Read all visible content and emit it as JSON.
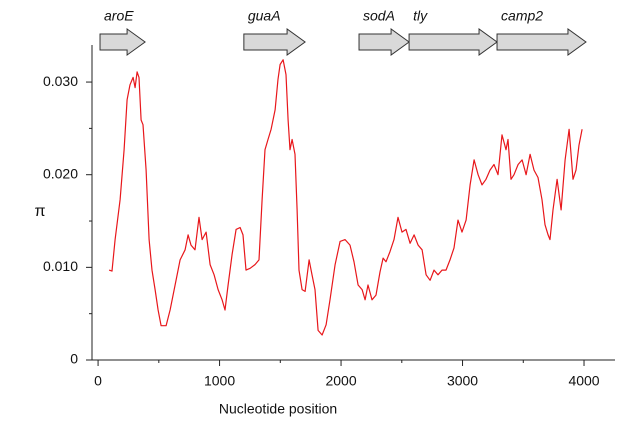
{
  "chart_data": {
    "type": "line",
    "xlabel": "Nucleotide position",
    "ylabel": "π",
    "xlim": [
      -50,
      4255
    ],
    "ylim": [
      0,
      0.034
    ],
    "xticks": [
      0,
      1000,
      2000,
      3000,
      4000
    ],
    "xminorticks": [
      500,
      1500,
      2500,
      3500
    ],
    "yticks": [
      0,
      {
        "value": 0.01,
        "label": "0.010"
      },
      {
        "value": 0.02,
        "label": "0.020"
      },
      {
        "value": 0.03,
        "label": "0.030"
      }
    ],
    "yminorticks": [
      0.005,
      0.015,
      0.025
    ],
    "genes": [
      {
        "label": "aroE",
        "start": 16,
        "end": 387
      },
      {
        "label": "guaA",
        "start": 1200,
        "end": 1704
      },
      {
        "label": "sodA",
        "start": 2148,
        "end": 2560
      },
      {
        "label": "tly",
        "start": 2560,
        "end": 3284
      },
      {
        "label": "camp2",
        "start": 3284,
        "end": 4016
      }
    ],
    "gene_color": "#d9d9d9",
    "series": [
      {
        "color": "#e8171b",
        "x": [
          91,
          115,
          140,
          181,
          214,
          239,
          263,
          288,
          305,
          321,
          337,
          354,
          370,
          395,
          420,
          444,
          469,
          494,
          519,
          560,
          593,
          634,
          675,
          716,
          741,
          765,
          798,
          831,
          856,
          889,
          922,
          955,
          988,
          1021,
          1045,
          1070,
          1103,
          1136,
          1169,
          1193,
          1218,
          1251,
          1292,
          1325,
          1350,
          1374,
          1399,
          1424,
          1457,
          1481,
          1498,
          1523,
          1547,
          1564,
          1580,
          1597,
          1621,
          1638,
          1654,
          1679,
          1704,
          1737,
          1761,
          1786,
          1811,
          1844,
          1877,
          1909,
          1951,
          1992,
          2033,
          2074,
          2107,
          2140,
          2173,
          2198,
          2222,
          2255,
          2288,
          2321,
          2346,
          2370,
          2403,
          2436,
          2469,
          2502,
          2535,
          2568,
          2601,
          2634,
          2667,
          2700,
          2733,
          2765,
          2798,
          2831,
          2864,
          2897,
          2930,
          2963,
          2996,
          3029,
          3062,
          3095,
          3128,
          3160,
          3193,
          3226,
          3259,
          3292,
          3325,
          3358,
          3374,
          3399,
          3424,
          3457,
          3490,
          3523,
          3556,
          3588,
          3621,
          3654,
          3679,
          3704,
          3720,
          3745,
          3778,
          3811,
          3844,
          3877,
          3909,
          3934,
          3959,
          3984
        ],
        "values": [
          0.0097,
          0.0096,
          0.013,
          0.0173,
          0.0227,
          0.0281,
          0.0297,
          0.0305,
          0.0294,
          0.0311,
          0.0305,
          0.0259,
          0.0254,
          0.0205,
          0.013,
          0.0097,
          0.0076,
          0.0054,
          0.0037,
          0.0037,
          0.0054,
          0.0081,
          0.0108,
          0.0119,
          0.0135,
          0.0124,
          0.0119,
          0.0154,
          0.013,
          0.0138,
          0.0103,
          0.0092,
          0.0076,
          0.0065,
          0.0054,
          0.0081,
          0.0114,
          0.0141,
          0.0143,
          0.0135,
          0.0097,
          0.0099,
          0.0103,
          0.0108,
          0.0173,
          0.0227,
          0.0238,
          0.0249,
          0.027,
          0.0303,
          0.0319,
          0.0324,
          0.0308,
          0.0259,
          0.0227,
          0.0238,
          0.0222,
          0.0162,
          0.0097,
          0.0076,
          0.0074,
          0.0108,
          0.0092,
          0.0076,
          0.0032,
          0.0027,
          0.0038,
          0.0065,
          0.0103,
          0.0128,
          0.013,
          0.0124,
          0.0106,
          0.0081,
          0.0076,
          0.0065,
          0.0081,
          0.0065,
          0.007,
          0.0095,
          0.011,
          0.0106,
          0.0117,
          0.013,
          0.0154,
          0.0138,
          0.0141,
          0.0126,
          0.0135,
          0.0124,
          0.0119,
          0.0092,
          0.0086,
          0.0097,
          0.0092,
          0.0097,
          0.0097,
          0.0108,
          0.0121,
          0.0151,
          0.0138,
          0.0151,
          0.0189,
          0.0216,
          0.02,
          0.0189,
          0.0195,
          0.0205,
          0.0211,
          0.02,
          0.0243,
          0.0227,
          0.0238,
          0.0195,
          0.02,
          0.0211,
          0.0216,
          0.02,
          0.0222,
          0.0205,
          0.0197,
          0.0173,
          0.0146,
          0.0135,
          0.013,
          0.0162,
          0.0195,
          0.0162,
          0.0216,
          0.0249,
          0.0195,
          0.0205,
          0.0232,
          0.0249
        ]
      }
    ]
  }
}
